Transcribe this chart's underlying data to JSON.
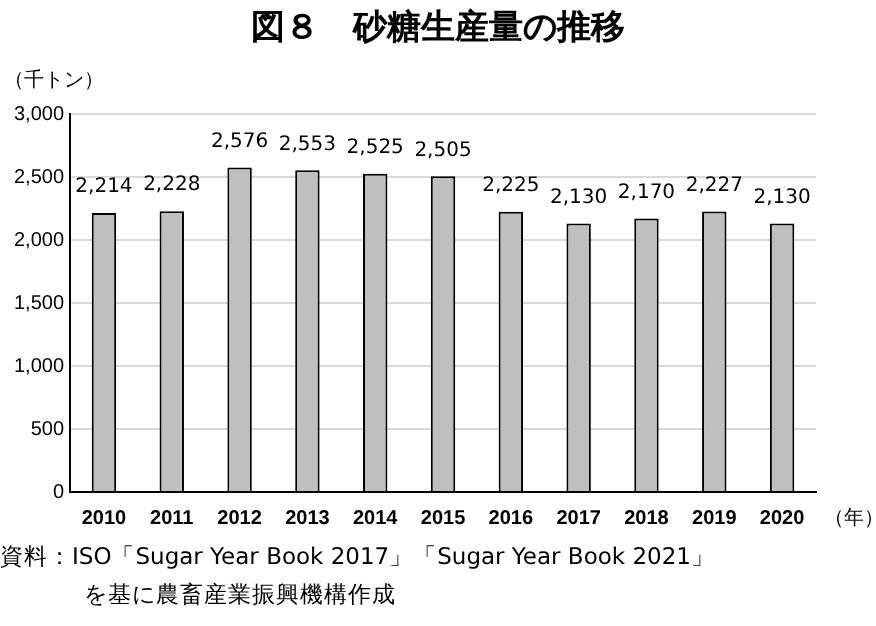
{
  "chart_data": {
    "type": "bar",
    "title": "図８　砂糖生産量の推移",
    "ylabel": "（千トン）",
    "xlabel": "（年）",
    "categories": [
      "2010",
      "2011",
      "2012",
      "2013",
      "2014",
      "2015",
      "2016",
      "2017",
      "2018",
      "2019",
      "2020"
    ],
    "values": [
      2214,
      2228,
      2576,
      2553,
      2525,
      2505,
      2225,
      2130,
      2170,
      2227,
      2130
    ],
    "value_labels": [
      "2,214",
      "2,228",
      "2,576",
      "2,553",
      "2,525",
      "2,505",
      "2,225",
      "2,130",
      "2,170",
      "2,227",
      "2,130"
    ],
    "color": "#bfbfbf",
    "ylim": [
      0,
      3000
    ],
    "yticks": [
      {
        "value": 0,
        "label": "0"
      },
      {
        "value": 500,
        "label": "500"
      },
      {
        "value": 1000,
        "label": "1,000"
      },
      {
        "value": 1500,
        "label": "1,500"
      },
      {
        "value": 2000,
        "label": "2,000"
      },
      {
        "value": 2500,
        "label": "2,500"
      },
      {
        "value": 3000,
        "label": "3,000"
      }
    ],
    "grid": "y",
    "annotations": [
      "資料：ISO「Sugar Year Book 2017」「Sugar Year Book 2021」",
      "を基に農畜産業振興機構作成"
    ]
  }
}
